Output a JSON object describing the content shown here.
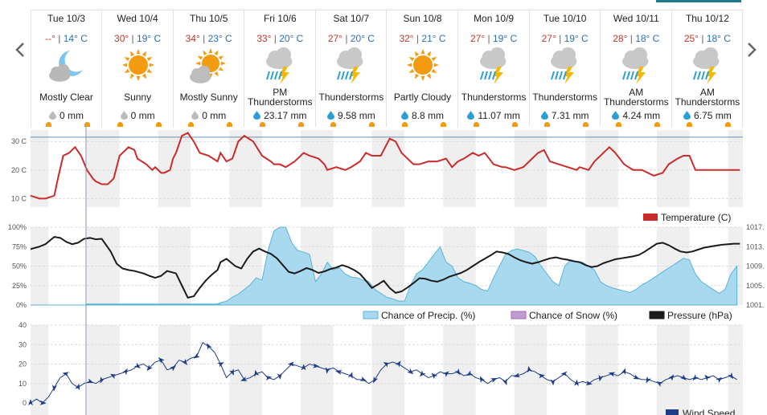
{
  "forecast": [
    {
      "day": "Tue 10/3",
      "hi": "--°",
      "lo": "14° C",
      "cond": [
        "Mostly Clear"
      ],
      "precip": "0 mm",
      "icon": "moon-cloud-icon",
      "drop": "gray"
    },
    {
      "day": "Wed 10/4",
      "hi": "30°",
      "lo": "19° C",
      "cond": [
        "Sunny"
      ],
      "precip": "0 mm",
      "icon": "sun-icon",
      "drop": "gray"
    },
    {
      "day": "Thu 10/5",
      "hi": "34°",
      "lo": "23° C",
      "cond": [
        "Mostly Sunny"
      ],
      "precip": "0 mm",
      "icon": "sun-cloud-icon",
      "drop": "gray"
    },
    {
      "day": "Fri 10/6",
      "hi": "33°",
      "lo": "20° C",
      "cond": [
        "PM",
        "Thunderstorms"
      ],
      "precip": "23.17 mm",
      "icon": "thunderstorm-icon",
      "drop": "blue"
    },
    {
      "day": "Sat 10/7",
      "hi": "27°",
      "lo": "20° C",
      "cond": [
        "Thunderstorms"
      ],
      "precip": "9.58 mm",
      "icon": "thunderstorm-icon",
      "drop": "blue"
    },
    {
      "day": "Sun 10/8",
      "hi": "32°",
      "lo": "21° C",
      "cond": [
        "Partly Cloudy"
      ],
      "precip": "8.8 mm",
      "icon": "sun-icon",
      "drop": "blue"
    },
    {
      "day": "Mon 10/9",
      "hi": "27°",
      "lo": "19° C",
      "cond": [
        "Thunderstorms"
      ],
      "precip": "11.07 mm",
      "icon": "thunderstorm-icon",
      "drop": "blue"
    },
    {
      "day": "Tue 10/10",
      "hi": "27°",
      "lo": "19° C",
      "cond": [
        "Thunderstorms"
      ],
      "precip": "7.31 mm",
      "icon": "thunderstorm-icon",
      "drop": "blue"
    },
    {
      "day": "Wed 10/11",
      "hi": "28°",
      "lo": "18° C",
      "cond": [
        "AM",
        "Thunderstorms"
      ],
      "precip": "4.24 mm",
      "icon": "thunderstorm-icon",
      "drop": "blue"
    },
    {
      "day": "Thu 10/12",
      "hi": "25°",
      "lo": "18° C",
      "cond": [
        "AM",
        "Thunderstorms"
      ],
      "precip": "6.75 mm",
      "icon": "thunderstorm-icon",
      "drop": "blue"
    }
  ],
  "colors": {
    "temperature": "#cc2b2b",
    "precip_fill": "#a9d9ee",
    "precip_line": "#5ab4d8",
    "snow_fill": "#c39bd3",
    "pressure": "#1b1b1b",
    "wind": "#1f3c88",
    "sun": "#f39c12",
    "moon": "#7cc6ee",
    "cloud": "#c8c8c8",
    "bolt": "#f5b800",
    "rain": "#2a9fd6",
    "hi_text": "#c0392b",
    "lo_text": "#2a6fb5",
    "night_band": "#efefef",
    "ref_line": "#6b8fb5"
  },
  "chart_data": [
    {
      "type": "line",
      "series": [
        {
          "name": "Temperature (C)",
          "x_hours": [
            0,
            3,
            5,
            8,
            9,
            11,
            13,
            15,
            17,
            19,
            21,
            22,
            24,
            26,
            28,
            30,
            33,
            35,
            36,
            39,
            41,
            42,
            44,
            45,
            47,
            48,
            49,
            51,
            53,
            55,
            57,
            60,
            63,
            64,
            66,
            68,
            70,
            72,
            75,
            78,
            81,
            82,
            84,
            86,
            89,
            90,
            92,
            94,
            97,
            99,
            100,
            103,
            106,
            108,
            111,
            113,
            115,
            118,
            121,
            123,
            125,
            127,
            129,
            131,
            134,
            137,
            140,
            142,
            144,
            146,
            149,
            151,
            153,
            156,
            159,
            160,
            163,
            166,
            168,
            171,
            173,
            175,
            178,
            181,
            184,
            185,
            188,
            190,
            193,
            195,
            197,
            200,
            203,
            206,
            208,
            210,
            213,
            215,
            218,
            220,
            222,
            224,
            227,
            230,
            232,
            234,
            237,
            239
          ],
          "values": [
            11,
            10,
            10,
            11,
            16,
            25,
            26,
            28,
            25,
            20,
            17,
            16,
            15,
            15,
            17,
            25,
            28,
            27,
            24,
            22,
            20,
            21,
            19,
            19,
            20,
            24,
            26,
            32,
            33,
            30,
            26,
            25,
            23,
            26,
            23,
            24,
            30,
            32,
            30,
            25,
            23,
            22,
            22,
            21,
            23,
            24,
            26,
            25,
            24,
            22,
            20,
            21,
            20,
            21,
            23,
            26,
            25,
            25,
            31,
            30,
            26,
            24,
            22,
            22,
            23,
            23,
            24,
            21,
            23,
            24,
            26,
            25,
            26,
            22,
            21,
            21,
            20,
            21,
            23,
            26,
            27,
            23,
            22,
            21,
            20,
            21,
            20,
            23,
            26,
            28,
            26,
            22,
            20,
            20,
            19,
            18,
            19,
            22,
            24,
            25,
            25,
            20,
            20,
            20,
            20,
            20,
            20,
            20
          ]
        }
      ],
      "ylabel": "",
      "yticks": [
        "10 C",
        "20 C",
        "30 C"
      ],
      "ylim": [
        7,
        34
      ],
      "reference_line": 31.5,
      "legend": [
        "Temperature (C)"
      ]
    },
    {
      "type": "area",
      "series": [
        {
          "name": "Chance of Precip. (%)",
          "x_hours": [
            0,
            2,
            4,
            6,
            8,
            10,
            12,
            14,
            16,
            18,
            20,
            22,
            24,
            26,
            28,
            30,
            32,
            34,
            36,
            38,
            40,
            42,
            44,
            46,
            48,
            50,
            52,
            54,
            56,
            58,
            60,
            62,
            64,
            66,
            68,
            70,
            72,
            74,
            76,
            78,
            80,
            82,
            84,
            86,
            88,
            90,
            92,
            94,
            96,
            98,
            100,
            102,
            104,
            106,
            108,
            110,
            112,
            114,
            116,
            118,
            120,
            122,
            124,
            126,
            128,
            130,
            132,
            134,
            136,
            138,
            140,
            142,
            144,
            146,
            148,
            150,
            152,
            154,
            156,
            158,
            160,
            162,
            164,
            166,
            168,
            170,
            172,
            174,
            176,
            178,
            180,
            182,
            184,
            186,
            188,
            190,
            192,
            194,
            196,
            198,
            200,
            202,
            204,
            206,
            208,
            210,
            212,
            214,
            216,
            218,
            220,
            222,
            224,
            226,
            228,
            230,
            232,
            234,
            236,
            238
          ],
          "values": [
            0,
            0,
            0,
            0,
            0,
            0,
            0,
            0,
            0,
            0,
            0,
            0,
            0,
            0,
            0,
            0,
            0,
            0,
            0,
            0,
            0,
            0,
            0,
            0,
            0,
            0,
            0,
            0,
            0,
            0,
            0,
            0,
            3,
            5,
            10,
            14,
            20,
            26,
            35,
            32,
            70,
            95,
            100,
            100,
            80,
            70,
            68,
            65,
            30,
            40,
            55,
            45,
            48,
            40,
            36,
            35,
            32,
            30,
            20,
            15,
            10,
            8,
            5,
            5,
            25,
            40,
            45,
            55,
            65,
            75,
            55,
            50,
            35,
            30,
            28,
            25,
            20,
            18,
            35,
            50,
            65,
            70,
            72,
            70,
            68,
            62,
            50,
            40,
            30,
            25,
            50,
            58,
            56,
            55,
            50,
            45,
            30,
            25,
            22,
            20,
            18,
            16,
            20,
            26,
            30,
            35,
            40,
            45,
            50,
            55,
            60,
            58,
            40,
            30,
            25,
            20,
            15,
            20,
            40,
            50
          ]
        },
        {
          "name": "Chance of Snow (%)",
          "values": []
        }
      ],
      "pressure_series": {
        "name": "Pressure (hPa)",
        "x_hours": [
          0,
          3,
          5,
          8,
          10,
          12,
          14,
          16,
          18,
          20,
          22,
          24,
          27,
          29,
          31,
          33,
          35,
          38,
          40,
          42,
          44,
          46,
          49,
          51,
          53,
          55,
          57,
          59,
          61,
          63,
          64,
          66,
          69,
          71,
          73,
          75,
          77,
          79,
          81,
          83,
          85,
          87,
          89,
          91,
          93,
          95,
          97,
          99,
          101,
          103,
          105,
          107,
          109,
          111,
          113,
          115,
          117,
          119,
          121,
          123,
          125,
          127,
          129,
          131,
          133,
          135,
          137,
          139,
          141,
          143,
          145,
          147,
          149,
          151,
          153,
          155,
          157,
          159,
          161,
          163,
          165,
          167,
          169,
          171,
          173,
          175,
          177,
          179,
          181,
          183,
          185,
          187,
          189,
          191,
          193,
          195,
          197,
          199,
          201,
          203,
          205,
          207,
          209,
          211,
          213,
          215,
          217,
          219,
          221,
          223,
          225,
          227,
          229,
          231,
          233,
          235,
          237,
          239
        ],
        "values": [
          1012.5,
          1013.0,
          1013.5,
          1015.0,
          1014.8,
          1014.0,
          1013.5,
          1013.8,
          1014.6,
          1014.8,
          1014.5,
          1014.6,
          1012.0,
          1009.5,
          1008.5,
          1008.2,
          1008.0,
          1007.5,
          1007.0,
          1006.6,
          1007.0,
          1008.0,
          1007.5,
          1005.0,
          1002.5,
          1002.8,
          1004.5,
          1006.0,
          1007.2,
          1008.2,
          1009.8,
          1010.5,
          1009.0,
          1008.5,
          1010.5,
          1012.0,
          1012.6,
          1012.0,
          1011.5,
          1010.6,
          1009.2,
          1007.8,
          1007.5,
          1008.0,
          1008.6,
          1008.2,
          1007.6,
          1007.9,
          1008.4,
          1008.7,
          1009.2,
          1008.8,
          1008.2,
          1007.4,
          1006.0,
          1004.5,
          1005.2,
          1006.0,
          1004.5,
          1003.5,
          1003.8,
          1004.6,
          1005.5,
          1006.5,
          1006.4,
          1006.0,
          1005.8,
          1006.2,
          1006.8,
          1007.2,
          1007.6,
          1008.2,
          1009.0,
          1009.8,
          1010.5,
          1011.2,
          1012.0,
          1011.8,
          1011.5,
          1010.8,
          1010.2,
          1009.8,
          1009.5,
          1009.8,
          1010.2,
          1010.6,
          1010.8,
          1010.5,
          1010.3,
          1010.0,
          1009.8,
          1009.2,
          1008.8,
          1009.0,
          1009.6,
          1010.0,
          1010.4,
          1010.6,
          1010.8,
          1011.0,
          1011.3,
          1012.0,
          1012.8,
          1013.6,
          1013.8,
          1013.3,
          1012.6,
          1012.0,
          1011.8,
          1012.0,
          1012.4,
          1012.8,
          1013.0,
          1013.2,
          1013.4,
          1013.5,
          1013.6,
          1013.6
        ]
      },
      "yticks_left": [
        "0%",
        "25%",
        "50%",
        "75%",
        "100%"
      ],
      "yticks_right": [
        "1001.",
        "1005.",
        "1009.",
        "1013.",
        "1017."
      ],
      "ylim_left": [
        0,
        100
      ],
      "ylim_right": [
        1001,
        1017
      ],
      "legend": [
        "Chance of Precip. (%)",
        "Chance of Snow (%)",
        "Pressure (hPa)"
      ]
    },
    {
      "type": "line",
      "series": [
        {
          "name": "Wind Speed",
          "x_hours": [
            0,
            2,
            4,
            6,
            8,
            10,
            12,
            14,
            16,
            18,
            20,
            22,
            24,
            26,
            28,
            30,
            32,
            34,
            36,
            38,
            40,
            42,
            44,
            46,
            48,
            50,
            52,
            54,
            56,
            58,
            60,
            62,
            64,
            66,
            68,
            70,
            72,
            74,
            76,
            78,
            80,
            82,
            84,
            86,
            88,
            90,
            92,
            94,
            96,
            98,
            100,
            102,
            104,
            106,
            108,
            110,
            112,
            114,
            116,
            118,
            120,
            122,
            124,
            126,
            128,
            130,
            132,
            134,
            136,
            138,
            140,
            142,
            144,
            146,
            148,
            150,
            152,
            154,
            156,
            158,
            160,
            162,
            164,
            166,
            168,
            170,
            172,
            174,
            176,
            178,
            180,
            182,
            184,
            186,
            188,
            190,
            192,
            194,
            196,
            198,
            200,
            202,
            204,
            206,
            208,
            210,
            212,
            214,
            216,
            218,
            220,
            222,
            224,
            226,
            228,
            230,
            232,
            234,
            236,
            238
          ],
          "values": [
            0,
            2,
            0,
            3,
            8,
            13,
            15,
            10,
            8,
            10,
            11,
            10,
            12,
            13,
            14,
            15,
            16,
            17,
            19,
            20,
            18,
            21,
            22,
            17,
            18,
            22,
            21,
            23,
            24,
            31,
            29,
            26,
            20,
            13,
            16,
            17,
            12,
            13,
            15,
            16,
            13,
            12,
            14,
            17,
            20,
            19,
            18,
            20,
            19,
            18,
            17,
            18,
            16,
            15,
            14,
            12,
            12,
            10,
            12,
            17,
            20,
            21,
            20,
            18,
            16,
            17,
            15,
            13,
            14,
            16,
            15,
            15,
            16,
            14,
            15,
            13,
            12,
            10,
            12,
            13,
            11,
            14,
            14,
            15,
            17,
            16,
            14,
            12,
            11,
            13,
            15,
            12,
            10,
            11,
            10,
            12,
            13,
            14,
            15,
            14,
            16,
            15,
            13,
            12,
            12,
            11,
            10,
            12,
            13,
            14,
            13,
            12,
            13,
            12,
            13,
            14,
            12,
            13,
            14,
            12
          ]
        }
      ],
      "yticks": [
        "0",
        "10",
        "20",
        "30",
        "40"
      ],
      "ylim": [
        0,
        40
      ],
      "legend": [
        "Wind Speed"
      ]
    }
  ]
}
